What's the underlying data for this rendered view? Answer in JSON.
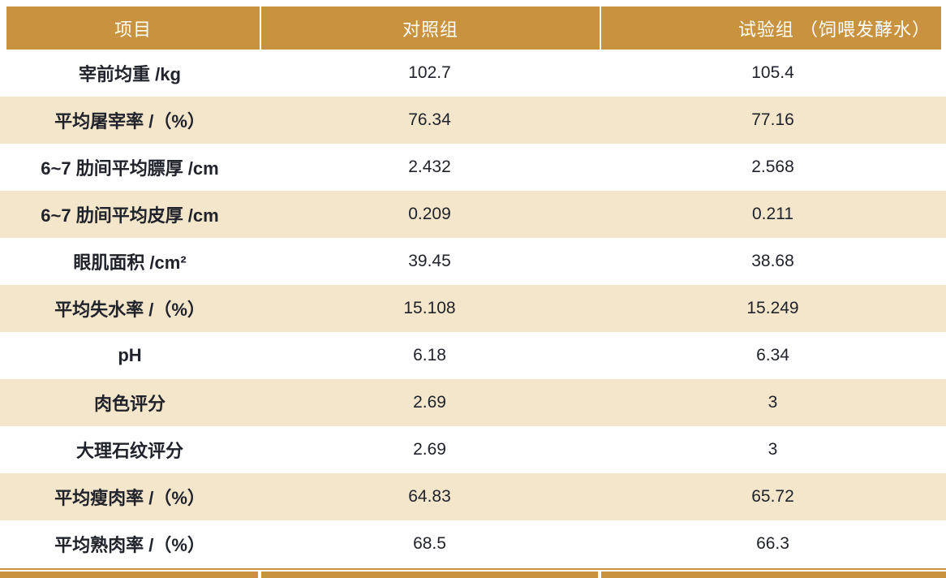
{
  "colors": {
    "gold": "#C9923E",
    "cream": "#F3E6CB",
    "text": "#20232B",
    "header_text": "#FFFFFF"
  },
  "table": {
    "columns": [
      {
        "key": "item",
        "label": "项目"
      },
      {
        "key": "control",
        "label": "对照组"
      },
      {
        "key": "test",
        "label": "试验组 （饲喂发酵水）"
      }
    ],
    "rows": [
      {
        "label": "宰前均重 /kg",
        "control": "102.7",
        "test": "105.4"
      },
      {
        "label": "平均屠宰率 /（%）",
        "control": "76.34",
        "test": "77.16"
      },
      {
        "label": "6~7 肋间平均膘厚 /cm",
        "control": "2.432",
        "test": "2.568"
      },
      {
        "label": "6~7 肋间平均皮厚 /cm",
        "control": "0.209",
        "test": "0.211"
      },
      {
        "label": "眼肌面积 /cm²",
        "control": "39.45",
        "test": "38.68"
      },
      {
        "label": "平均失水率 /（%）",
        "control": "15.108",
        "test": "15.249"
      },
      {
        "label": "pH",
        "control": "6.18",
        "test": "6.34"
      },
      {
        "label": "肉色评分",
        "control": "2.69",
        "test": "3"
      },
      {
        "label": "大理石纹评分",
        "control": "2.69",
        "test": "3"
      },
      {
        "label": "平均瘦肉率 /（%）",
        "control": "64.83",
        "test": "65.72"
      },
      {
        "label": "平均熟肉率 /（%）",
        "control": "68.5",
        "test": "66.3"
      }
    ]
  }
}
